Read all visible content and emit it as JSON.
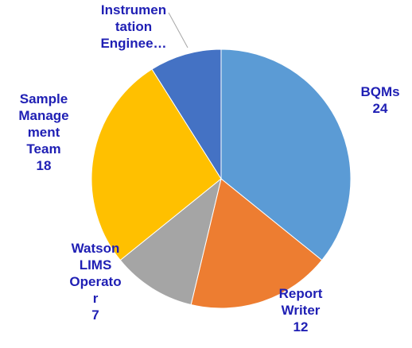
{
  "chart_data": {
    "type": "pie",
    "categories": [
      "BQMs",
      "Report Writer",
      "Watson LIMS Operator",
      "Sample Management Team",
      "Instrumentation Enginee…"
    ],
    "values": [
      24,
      12,
      7,
      18,
      6
    ],
    "value_labels": [
      "24",
      "12",
      "7",
      "18",
      null
    ],
    "colors": [
      "#5b9bd5",
      "#ed7d31",
      "#a5a5a5",
      "#ffc000",
      "#4472c4"
    ]
  }
}
